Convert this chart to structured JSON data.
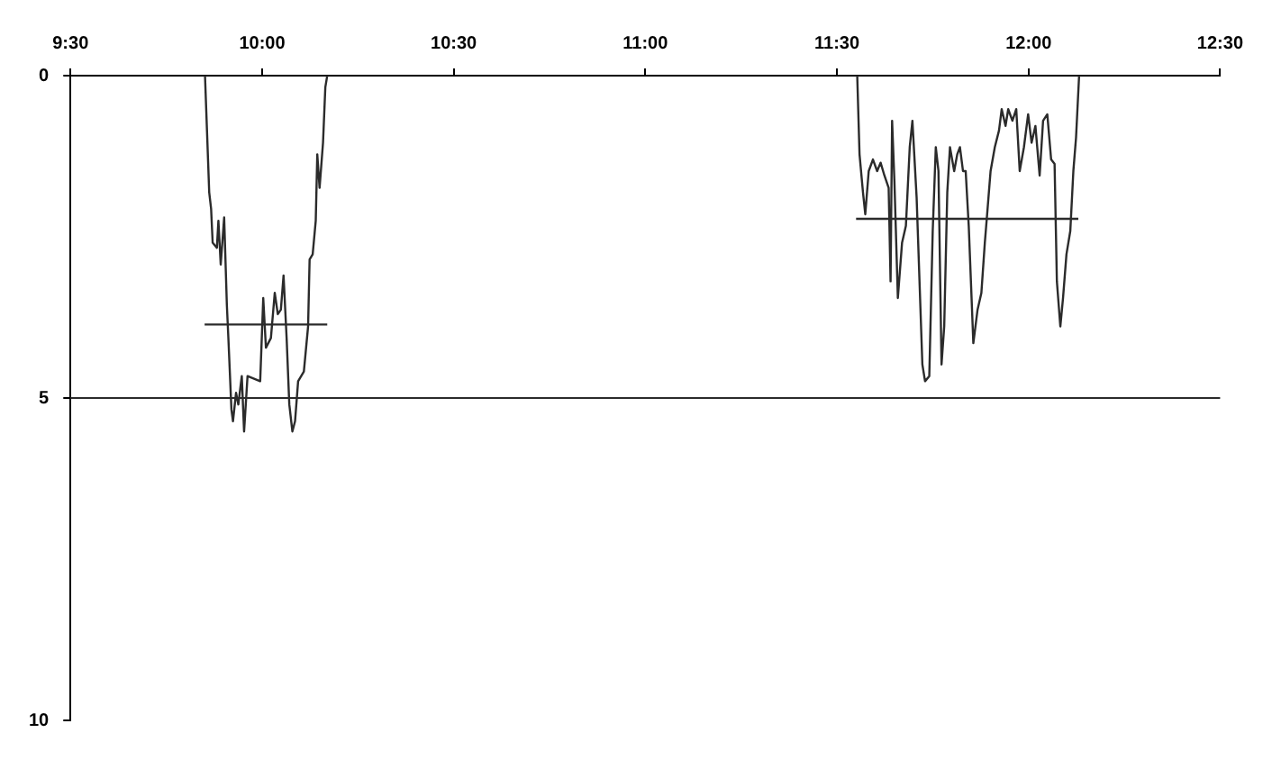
{
  "chart_data": {
    "type": "line",
    "xlim": [
      9.5,
      12.5
    ],
    "xticks": [
      {
        "value": 9.5,
        "label": "9:30"
      },
      {
        "value": 10,
        "label": "10:00"
      },
      {
        "value": 10.5,
        "label": "10:30"
      },
      {
        "value": 11,
        "label": "11:00"
      },
      {
        "value": 11.5,
        "label": "11:30"
      },
      {
        "value": 12,
        "label": "12:00"
      },
      {
        "value": 12.5,
        "label": "12:30"
      }
    ],
    "ylim": [
      10,
      0
    ],
    "yticks": [
      0,
      5,
      10
    ],
    "series": [
      {
        "color": "#2b2b2b",
        "x": [
          9.851,
          9.862,
          9.867,
          9.871,
          9.882,
          9.886,
          9.892,
          9.901,
          9.908,
          9.912,
          9.92,
          9.924,
          9.932,
          9.938,
          9.947,
          9.953,
          9.962,
          9.995,
          10.003,
          10.01,
          10.023,
          10.033,
          10.041,
          10.049,
          10.056,
          10.064,
          10.071,
          10.079,
          10.086,
          10.094,
          10.109,
          10.12,
          10.124,
          10.132,
          10.14,
          10.144,
          10.15,
          10.159,
          10.165,
          10.17
        ],
        "values": [
          0,
          1.81,
          2.07,
          2.59,
          2.67,
          2.25,
          2.93,
          2.2,
          3.55,
          4.07,
          5.18,
          5.36,
          4.92,
          5.1,
          4.66,
          5.52,
          4.66,
          4.74,
          3.45,
          4.22,
          4.07,
          3.37,
          3.7,
          3.63,
          3.1,
          4.07,
          5.1,
          5.52,
          5.36,
          4.74,
          4.59,
          3.89,
          2.85,
          2.77,
          2.25,
          1.22,
          1.74,
          1.04,
          0.18,
          0
        ]
      },
      {
        "color": "#2b2b2b",
        "x": [
          11.553,
          11.559,
          11.568,
          11.574,
          11.583,
          11.594,
          11.605,
          11.614,
          11.624,
          11.635,
          11.64,
          11.644,
          11.65,
          11.659,
          11.67,
          11.68,
          11.69,
          11.697,
          11.708,
          11.723,
          11.73,
          11.741,
          11.75,
          11.758,
          11.765,
          11.773,
          11.78,
          11.788,
          11.795,
          11.806,
          11.814,
          11.821,
          11.829,
          11.836,
          11.844,
          11.856,
          11.867,
          11.877,
          11.886,
          11.892,
          11.901,
          11.912,
          11.923,
          11.93,
          11.94,
          11.947,
          11.958,
          11.968,
          11.977,
          11.988,
          11.999,
          12.008,
          12.018,
          12.029,
          12.038,
          12.049,
          12.059,
          12.068,
          12.074,
          12.083,
          12.09,
          12.099,
          12.109,
          12.117,
          12.124,
          12.132
        ],
        "values": [
          0,
          1.22,
          1.81,
          2.15,
          1.48,
          1.3,
          1.48,
          1.35,
          1.55,
          1.74,
          3.19,
          0.7,
          1.63,
          3.45,
          2.59,
          2.33,
          1.11,
          0.7,
          1.89,
          4.48,
          4.74,
          4.66,
          2.41,
          1.11,
          1.48,
          4.48,
          3.89,
          1.81,
          1.11,
          1.48,
          1.22,
          1.11,
          1.48,
          1.48,
          2.33,
          4.15,
          3.63,
          3.37,
          2.59,
          2.15,
          1.48,
          1.11,
          0.85,
          0.52,
          0.78,
          0.52,
          0.7,
          0.52,
          1.48,
          1.11,
          0.6,
          1.04,
          0.78,
          1.55,
          0.7,
          0.6,
          1.3,
          1.37,
          3.19,
          3.89,
          3.45,
          2.77,
          2.41,
          1.48,
          0.96,
          0
        ]
      },
      {
        "color": "#2b2b2b",
        "x": [
          9.85,
          10.17
        ],
        "values": [
          3.86,
          3.86
        ]
      },
      {
        "color": "#2b2b2b",
        "x": [
          11.55,
          12.13
        ],
        "values": [
          2.22,
          2.22
        ]
      }
    ],
    "ref_lines": [
      {
        "axis": "y",
        "value": 5,
        "color": "#2b2b2b"
      }
    ],
    "grid": false,
    "legend": false
  }
}
